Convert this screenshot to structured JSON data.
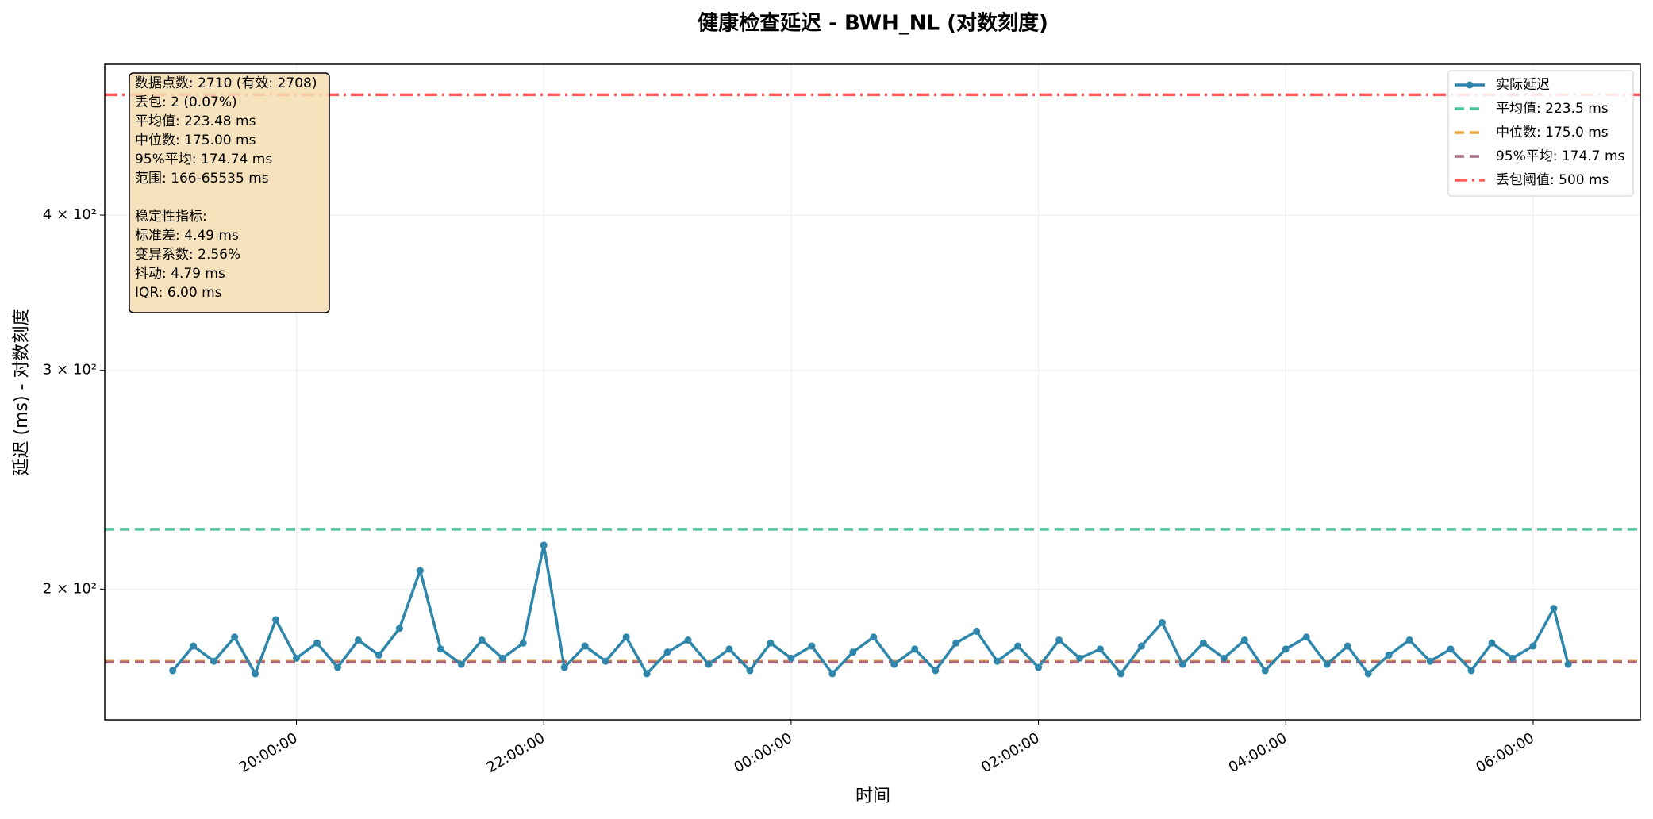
{
  "chart_data": {
    "type": "line",
    "title": "健康检查延迟 - BWH_NL (对数刻度)",
    "x_label": "时间",
    "y_label": "延迟 (ms) - 对数刻度",
    "log_y": true,
    "grid": true,
    "legend": "upper right",
    "xlim": [
      "18:27:00",
      "06:52:00"
    ],
    "xticks": [
      "20:00:00",
      "22:00:00",
      "00:00:00",
      "02:00:00",
      "04:00:00",
      "06:00:00"
    ],
    "ylim": [
      157,
      529
    ],
    "yticks": [
      {
        "value": 200,
        "label": "2 × 10²"
      },
      {
        "value": 300,
        "label": "3 × 10²"
      },
      {
        "value": 400,
        "label": "4 × 10²"
      }
    ],
    "series": [
      {
        "name": "实际延迟",
        "color": "#2e86ab",
        "x": [
          "19:00:00",
          "19:10:00",
          "19:20:00",
          "19:30:00",
          "19:40:00",
          "19:50:00",
          "20:00:00",
          "20:10:00",
          "20:20:00",
          "20:30:00",
          "20:40:00",
          "20:50:00",
          "21:00:00",
          "21:10:00",
          "21:20:00",
          "21:30:00",
          "21:40:00",
          "21:50:00",
          "22:00:00",
          "22:10:00",
          "22:20:00",
          "22:30:00",
          "22:40:00",
          "22:50:00",
          "23:00:00",
          "23:10:00",
          "23:20:00",
          "23:30:00",
          "23:40:00",
          "23:50:00",
          "00:00:00",
          "00:10:00",
          "00:20:00",
          "00:30:00",
          "00:40:00",
          "00:50:00",
          "01:00:00",
          "01:10:00",
          "01:20:00",
          "01:30:00",
          "01:40:00",
          "01:50:00",
          "02:00:00",
          "02:10:00",
          "02:20:00",
          "02:30:00",
          "02:40:00",
          "02:50:00",
          "03:00:00",
          "03:10:00",
          "03:20:00",
          "03:30:00",
          "03:40:00",
          "03:50:00",
          "04:00:00",
          "04:10:00",
          "04:20:00",
          "04:30:00",
          "04:40:00",
          "04:50:00",
          "05:00:00",
          "05:10:00",
          "05:20:00",
          "05:30:00",
          "05:40:00",
          "05:50:00",
          "06:00:00",
          "06:10:00",
          "06:17:00"
        ],
        "values": [
          172,
          180,
          175,
          183,
          171,
          189,
          176,
          181,
          173,
          182,
          177,
          186,
          207,
          179,
          174,
          182,
          176,
          181,
          217,
          173,
          180,
          175,
          183,
          171,
          178,
          182,
          174,
          179,
          172,
          181,
          176,
          180,
          171,
          178,
          183,
          174,
          179,
          172,
          181,
          185,
          175,
          180,
          173,
          182,
          176,
          179,
          171,
          180,
          188,
          174,
          181,
          176,
          182,
          172,
          179,
          183,
          174,
          180,
          171,
          177,
          182,
          175,
          179,
          172,
          181,
          176,
          180,
          193,
          174
        ]
      }
    ],
    "hlines": [
      {
        "name": "平均值: 223.5 ms",
        "value": 223.5,
        "color": "#4cc59a",
        "style": "dashed"
      },
      {
        "name": "中位数: 175.0 ms",
        "value": 175.0,
        "color": "#f0a530",
        "style": "dashed"
      },
      {
        "name": "95%平均: 174.7 ms",
        "value": 174.7,
        "color": "#a66a85",
        "style": "dashed"
      },
      {
        "name": "丢包阈值: 500 ms",
        "value": 500,
        "color": "#ff5c5c",
        "style": "dashdot"
      }
    ],
    "stats_box": [
      [
        "数据点数: 2710 (有效: 2708)",
        "丢包: 2 (0.07%)",
        "平均值: 223.48 ms",
        "中位数: 175.00 ms",
        "95%平均: 174.74 ms",
        "范围: 166-65535 ms"
      ],
      [
        "稳定性指标:",
        "标准差: 4.49 ms",
        "变异系数: 2.56%",
        "抖动: 4.79 ms",
        "IQR: 6.00 ms"
      ]
    ]
  }
}
